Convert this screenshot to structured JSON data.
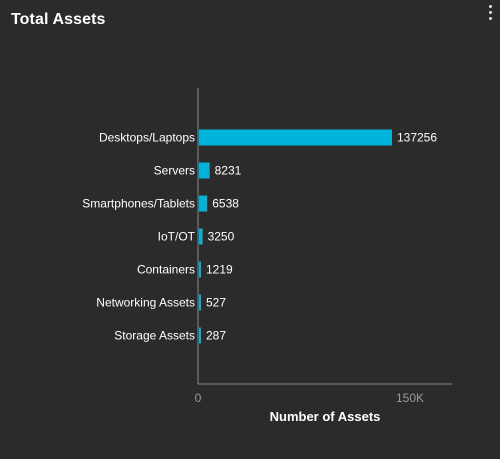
{
  "widget": {
    "title": "Total Assets",
    "menu_icon": "more-vertical-icon"
  },
  "colors": {
    "background": "#2b2b2b",
    "bar": "#00b4dc",
    "axis": "#8a8a8a"
  },
  "chart_data": {
    "type": "bar",
    "orientation": "horizontal",
    "categories": [
      "Desktops/Laptops",
      "Servers",
      "Smartphones/Tablets",
      "IoT/OT",
      "Containers",
      "Networking Assets",
      "Storage Assets"
    ],
    "values": [
      137256,
      8231,
      6538,
      3250,
      1219,
      527,
      287
    ],
    "value_labels": [
      "137256",
      "8231",
      "6538",
      "3250",
      "1219",
      "527",
      "287"
    ],
    "xlabel": "Number of Assets",
    "ylabel": "",
    "x_ticks": [
      {
        "value": 0,
        "label": "0"
      },
      {
        "value": 150000,
        "label": "150K"
      }
    ],
    "xlim": [
      0,
      165000
    ],
    "grid": false,
    "legend": "none"
  }
}
